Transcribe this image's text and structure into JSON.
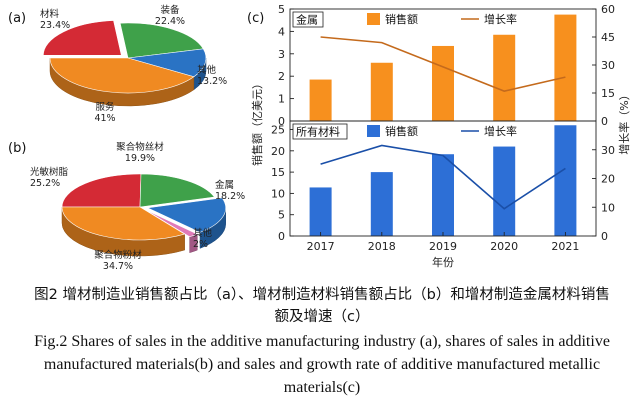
{
  "caption": {
    "cn_line1": "图2 增材制造业销售额占比（a）、增材制造材料销售额占比（b）和增材制造金属材料销售",
    "cn_line2": "额及增速（c）",
    "en_line1": "Fig.2 Shares of sales in the additive manufacturing industry (a), shares of sales in additive",
    "en_line2": "manufactured materials(b) and sales and growth rate of additive manufactured metallic",
    "en_line3": "materials(c)"
  },
  "chart_data": [
    {
      "panel": "(a)",
      "type": "pie",
      "slices": [
        {
          "label": "材料",
          "value": 23.4,
          "value_label": "23.4%",
          "color": "#d42a35"
        },
        {
          "label": "装备",
          "value": 22.4,
          "value_label": "22.4%",
          "color": "#3fa14a"
        },
        {
          "label": "其他",
          "value": 13.2,
          "value_label": "13.2%",
          "color": "#2a73c4"
        },
        {
          "label": "服务",
          "value": 41,
          "value_label": "41%",
          "color": "#f08a22"
        }
      ]
    },
    {
      "panel": "(b)",
      "type": "pie",
      "slices": [
        {
          "label": "光敏树脂",
          "value": 25.2,
          "value_label": "25.2%",
          "color": "#d42a35"
        },
        {
          "label": "聚合物丝材",
          "value": 19.9,
          "value_label": "19.9%",
          "color": "#3fa14a"
        },
        {
          "label": "金属",
          "value": 18.2,
          "value_label": "18.2%",
          "color": "#2a73c4"
        },
        {
          "label": "其他",
          "value": 2,
          "value_label": "2%",
          "color": "#e07ab8"
        },
        {
          "label": "聚合物粉材",
          "value": 34.7,
          "value_label": "34.7%",
          "color": "#f08a22"
        }
      ]
    },
    {
      "panel": "(c)",
      "type": "bar",
      "x": [
        "2017",
        "2018",
        "2019",
        "2020",
        "2021"
      ],
      "xlabel": "年份",
      "ylabel_left": "销售额（亿美元）",
      "ylabel_right": "增长率（%）",
      "subplots": [
        {
          "title": "金属",
          "ylim": [
            0,
            5
          ],
          "yticks": [
            0,
            1,
            2,
            3,
            4,
            5
          ],
          "y2lim": [
            0,
            60
          ],
          "y2ticks": [
            0,
            15,
            30,
            45,
            60
          ],
          "series": [
            {
              "name": "销售额",
              "type": "bar",
              "color": "#f7901e",
              "values": [
                1.85,
                2.6,
                3.35,
                3.85,
                4.75
              ]
            },
            {
              "name": "增长率",
              "type": "line",
              "color": "#c46a1c",
              "values": [
                45,
                42,
                29,
                16,
                23.5
              ]
            }
          ]
        },
        {
          "title": "所有材料",
          "ylim": [
            0,
            27
          ],
          "yticks": [
            0,
            5,
            10,
            15,
            20,
            25
          ],
          "y2lim": [
            0,
            40
          ],
          "y2ticks": [
            0,
            10,
            20,
            30
          ],
          "series": [
            {
              "name": "销售额",
              "type": "bar",
              "color": "#2d6fd6",
              "values": [
                11.4,
                15.0,
                19.2,
                21.0,
                26.0
              ]
            },
            {
              "name": "增长率",
              "type": "line",
              "color": "#1a4fa8",
              "values": [
                25,
                31.5,
                28,
                9.5,
                23.5
              ]
            }
          ]
        }
      ]
    }
  ]
}
